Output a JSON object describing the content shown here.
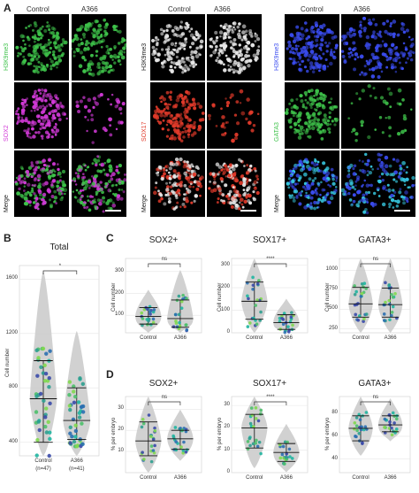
{
  "panel_labels": {
    "A": "A",
    "B": "B",
    "C": "C",
    "D": "D"
  },
  "panel_a": {
    "col_headers": [
      "Control",
      "A366",
      "Control",
      "A366",
      "Control",
      "A366"
    ],
    "group1": {
      "rows": [
        "H3K9me3",
        "SOX2",
        "Merge"
      ]
    },
    "group2": {
      "rows": [
        "H3K9me3",
        "SOX17",
        "Merge"
      ]
    },
    "group3": {
      "rows": [
        "H3K9me3",
        "GATA3",
        "Merge"
      ]
    },
    "colors": {
      "green": "#3ec24a",
      "magenta": "#d23ad8",
      "white": "#e8e8e8",
      "red": "#e03a2a",
      "blue": "#3a4cf0",
      "cyan": "#37c8e0"
    }
  },
  "chart_data": [
    {
      "panel": "B",
      "type": "violin",
      "title": "Total",
      "ylabel": "Cell number",
      "categories": [
        "Control",
        "A366"
      ],
      "n_labels": [
        "(n=47)",
        "(n=41)"
      ],
      "yticks": [
        400,
        800,
        1200,
        1600
      ],
      "ylim": [
        300,
        1700
      ],
      "medians": [
        720,
        560
      ],
      "q1": [
        400,
        420
      ],
      "q3": [
        1000,
        800
      ],
      "significance": "*"
    },
    {
      "panel": "C",
      "type": "violin",
      "title": "SOX2+",
      "ylabel": "Cell number",
      "categories": [
        "Control",
        "A366"
      ],
      "yticks": [
        100,
        200,
        300
      ],
      "ylim": [
        20,
        360
      ],
      "medians": [
        95,
        85
      ],
      "q1": [
        60,
        45
      ],
      "q3": [
        135,
        170
      ],
      "significance": "ns"
    },
    {
      "panel": "C",
      "type": "violin",
      "title": "SOX17+",
      "ylabel": "Cell number",
      "categories": [
        "Control",
        "A366"
      ],
      "yticks": [
        0,
        100,
        200,
        300
      ],
      "ylim": [
        0,
        330
      ],
      "medians": [
        140,
        45
      ],
      "q1": [
        60,
        15
      ],
      "q3": [
        225,
        80
      ],
      "significance": "****"
    },
    {
      "panel": "C",
      "type": "violin",
      "title": "GATA3+",
      "ylabel": "Cell number",
      "categories": [
        "Control",
        "A366"
      ],
      "yticks": [
        250,
        500,
        750,
        1000
      ],
      "ylim": [
        200,
        1150
      ],
      "medians": [
        570,
        560
      ],
      "q1": [
        400,
        400
      ],
      "q3": [
        780,
        770
      ],
      "significance": "ns"
    },
    {
      "panel": "D",
      "type": "violin",
      "title": "SOX2+",
      "ylabel": "% per embryo",
      "categories": [
        "Control",
        "A366"
      ],
      "yticks": [
        10,
        20,
        30
      ],
      "ylim": [
        0,
        36
      ],
      "medians": [
        15,
        16
      ],
      "q1": [
        8,
        11
      ],
      "q3": [
        24,
        20
      ],
      "significance": "ns"
    },
    {
      "panel": "D",
      "type": "violin",
      "title": "SOX17+",
      "ylabel": "% per embryo",
      "categories": [
        "Control",
        "A366"
      ],
      "yticks": [
        0,
        10,
        20,
        30
      ],
      "ylim": [
        0,
        34
      ],
      "medians": [
        20,
        9
      ],
      "q1": [
        11,
        5
      ],
      "q3": [
        26,
        13
      ],
      "significance": "****"
    },
    {
      "panel": "D",
      "type": "violin",
      "title": "GATA3+",
      "ylabel": "% per embryo",
      "categories": [
        "Control",
        "A366"
      ],
      "yticks": [
        40,
        60,
        80
      ],
      "ylim": [
        28,
        95
      ],
      "medians": [
        67,
        70
      ],
      "q1": [
        56,
        64
      ],
      "q3": [
        78,
        78
      ],
      "significance": "ns"
    }
  ]
}
